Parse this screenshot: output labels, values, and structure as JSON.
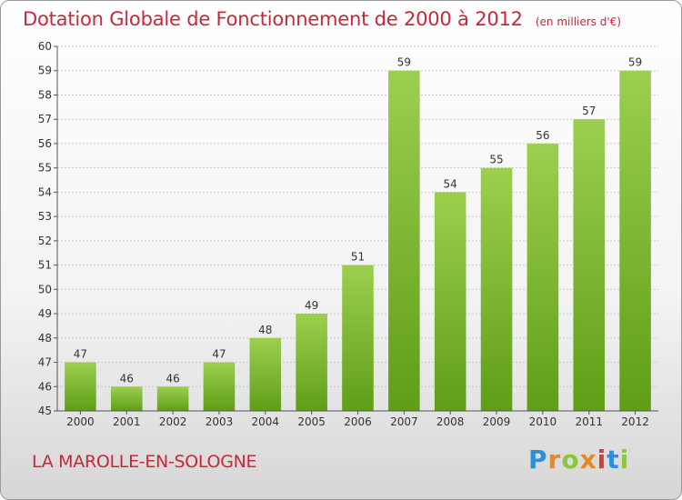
{
  "page": {
    "title": "Dotation Globale de Fonctionnement de 2000 à 2012",
    "unit_note": "(en milliers d'€)",
    "commune": "LA MAROLLE-EN-SOLOGNE",
    "logo": {
      "letters": [
        "P",
        "r",
        "o",
        "x",
        "i",
        "t",
        "i"
      ],
      "colors": [
        "#2f8fd6",
        "#e8862a",
        "#8cc63f",
        "#e8862a",
        "#d93a3a",
        "#2f8fd6",
        "#8cc63f"
      ]
    }
  },
  "chart_data": {
    "type": "bar",
    "categories": [
      "2000",
      "2001",
      "2002",
      "2003",
      "2004",
      "2005",
      "2006",
      "2007",
      "2008",
      "2009",
      "2010",
      "2011",
      "2012"
    ],
    "values": [
      47,
      46,
      46,
      47,
      48,
      49,
      51,
      59,
      54,
      55,
      56,
      57,
      59
    ],
    "title": "Dotation Globale de Fonctionnement de 2000 à 2012",
    "ylim": [
      45,
      60
    ],
    "yticks": [
      45,
      46,
      47,
      48,
      49,
      50,
      51,
      52,
      53,
      54,
      55,
      56,
      57,
      58,
      59,
      60
    ],
    "grid": true,
    "bar_color_top": "#9ccf4f",
    "bar_color_bottom": "#5f9e17",
    "show_data_labels": true
  }
}
